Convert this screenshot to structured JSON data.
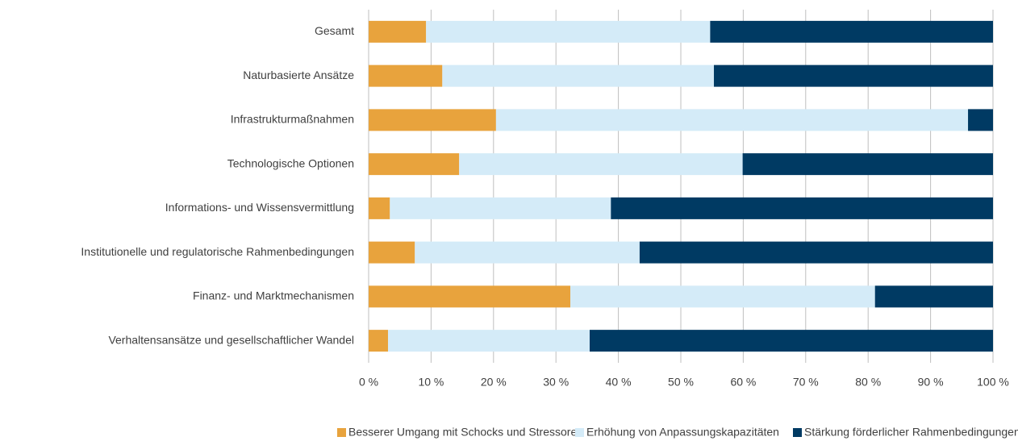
{
  "chart_data": {
    "type": "stacked-bar-horizontal",
    "categories": [
      "Gesamt",
      "Naturbasierte Ansätze",
      "Infrastrukturmaßnahmen",
      "Technologische Optionen",
      "Informations- und Wissensvermittlung",
      "Institutionelle und regulatorische Rahmenbedingungen",
      "Finanz- und Marktmechanismen",
      "Verhaltensansätze und gesellschaftlicher Wandel"
    ],
    "series": [
      {
        "name": "Besserer Umgang mit Schocks und Stressoren",
        "color": "#e8a33d",
        "values": [
          9.2,
          11.8,
          20.4,
          14.5,
          3.4,
          7.4,
          32.3,
          3.1
        ]
      },
      {
        "name": "Erhöhung von Anpassungskapazitäten",
        "color": "#d4ebf8",
        "values": [
          45.5,
          43.5,
          75.6,
          45.4,
          35.4,
          36.0,
          48.8,
          32.3
        ]
      },
      {
        "name": "Stärkung förderlicher Rahmenbedingungen",
        "color": "#003a63",
        "values": [
          45.3,
          44.7,
          4.0,
          40.1,
          61.2,
          56.6,
          18.9,
          64.6
        ]
      }
    ],
    "xlim": [
      0,
      100
    ],
    "xticks": [
      {
        "value": 0,
        "label": "0 %"
      },
      {
        "value": 10,
        "label": "10 %"
      },
      {
        "value": 20,
        "label": "20 %"
      },
      {
        "value": 30,
        "label": "30 %"
      },
      {
        "value": 40,
        "label": "40 %"
      },
      {
        "value": 50,
        "label": "50 %"
      },
      {
        "value": 60,
        "label": "60 %"
      },
      {
        "value": 70,
        "label": "70 %"
      },
      {
        "value": 80,
        "label": "80 %"
      },
      {
        "value": 90,
        "label": "90 %"
      },
      {
        "value": 100,
        "label": "100 %"
      }
    ],
    "grid": true,
    "legend": "bottom"
  }
}
